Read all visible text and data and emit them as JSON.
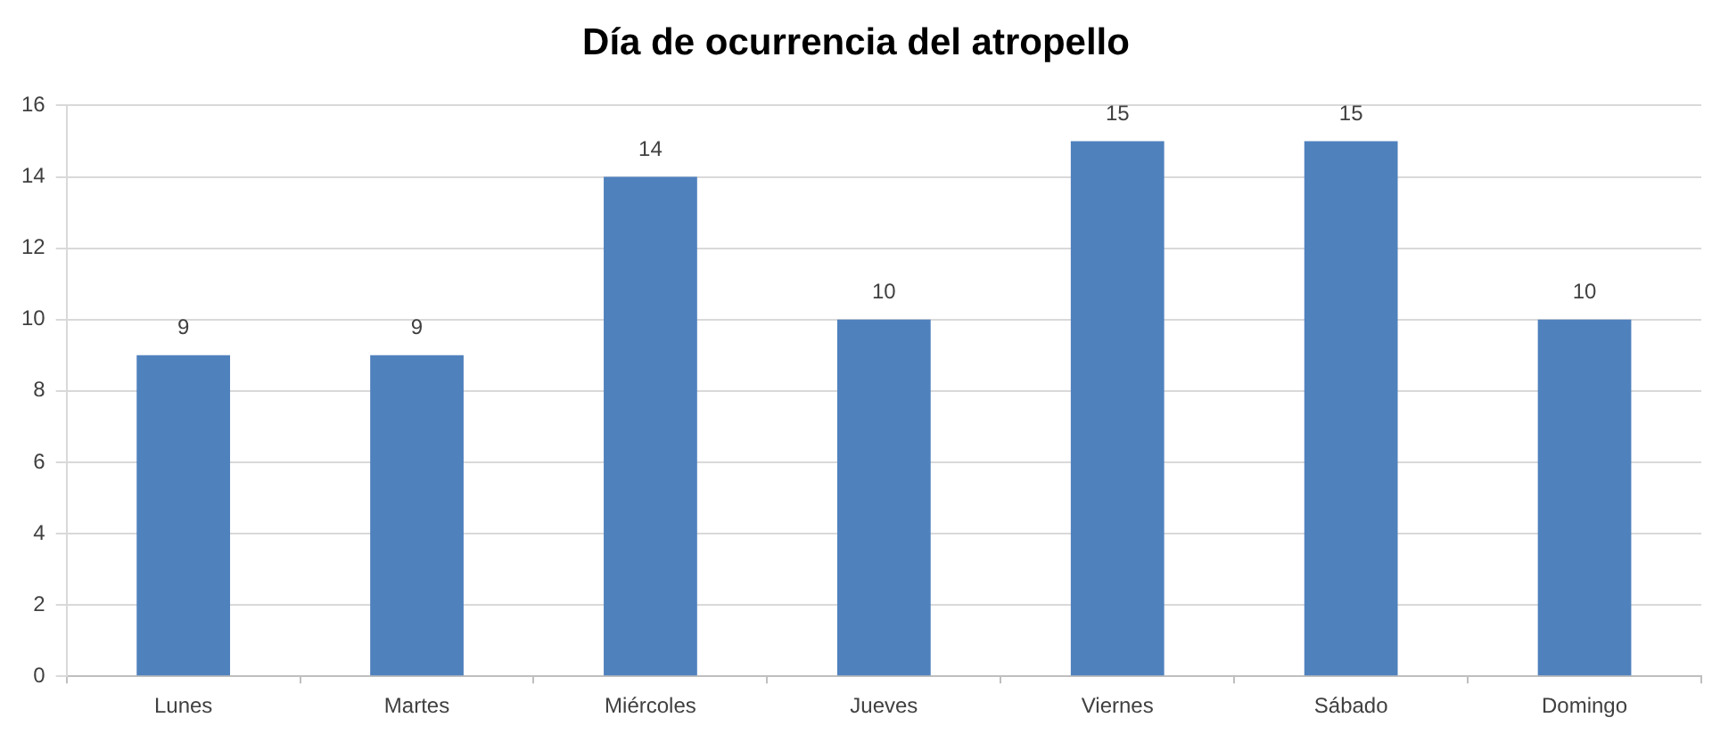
{
  "chart_data": {
    "type": "bar",
    "title": "Día de ocurrencia del atropello",
    "categories": [
      "Lunes",
      "Martes",
      "Miércoles",
      "Jueves",
      "Viernes",
      "Sábado",
      "Domingo"
    ],
    "values": [
      9,
      9,
      14,
      10,
      15,
      15,
      10
    ],
    "color": "#4f81bd",
    "ylim": [
      0,
      16
    ],
    "yticks": [
      0,
      2,
      4,
      6,
      8,
      10,
      12,
      14,
      16
    ],
    "grid": "y",
    "data_labels": true,
    "legend": false
  }
}
